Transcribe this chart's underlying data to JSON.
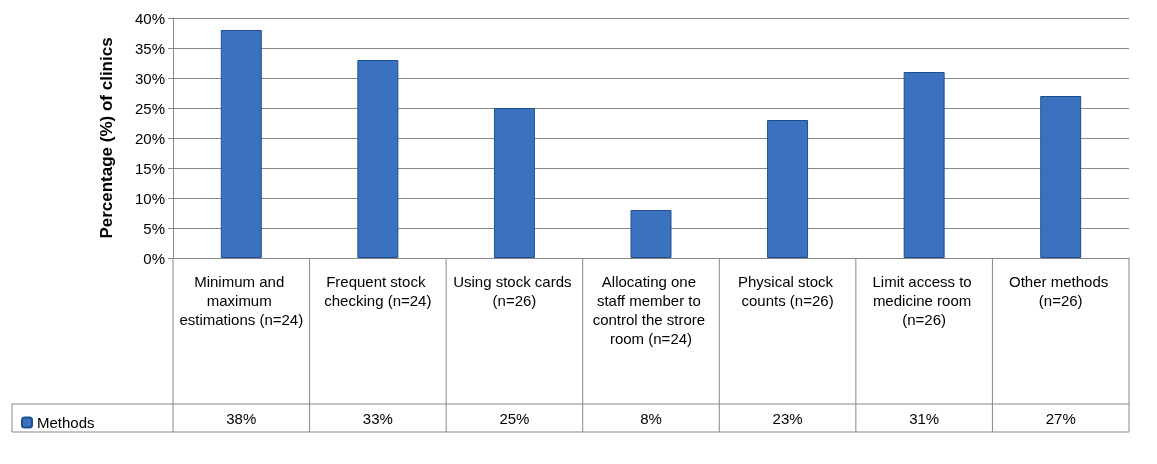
{
  "chart_data": {
    "type": "bar",
    "ylabel": "Percentage (%) of clinics",
    "categories": [
      "Minimum and maximum estimations (n=24)",
      "Frequent stock checking (n=24)",
      "Using stock cards (n=26)",
      "Allocating one staff member to control the strore room (n=24)",
      "Physical stock counts (n=26)",
      "Limit access to medicine room (n=26)",
      "Other methods (n=26)"
    ],
    "series": [
      {
        "name": "Methods",
        "color": "#3a72bf",
        "values": [
          38,
          33,
          25,
          8,
          23,
          31,
          27
        ],
        "value_labels": [
          "38%",
          "33%",
          "25%",
          "8%",
          "23%",
          "31%",
          "27%"
        ]
      }
    ],
    "ylim": [
      0,
      40
    ],
    "yticks": [
      {
        "value": 0,
        "label": "0%"
      },
      {
        "value": 5,
        "label": "5%"
      },
      {
        "value": 10,
        "label": "10%"
      },
      {
        "value": 15,
        "label": "15%"
      },
      {
        "value": 20,
        "label": "20%"
      },
      {
        "value": 25,
        "label": "25%"
      },
      {
        "value": 30,
        "label": "30%"
      },
      {
        "value": 35,
        "label": "35%"
      },
      {
        "value": 40,
        "label": "40%"
      }
    ],
    "grid": "y",
    "legend": "bottom left"
  }
}
